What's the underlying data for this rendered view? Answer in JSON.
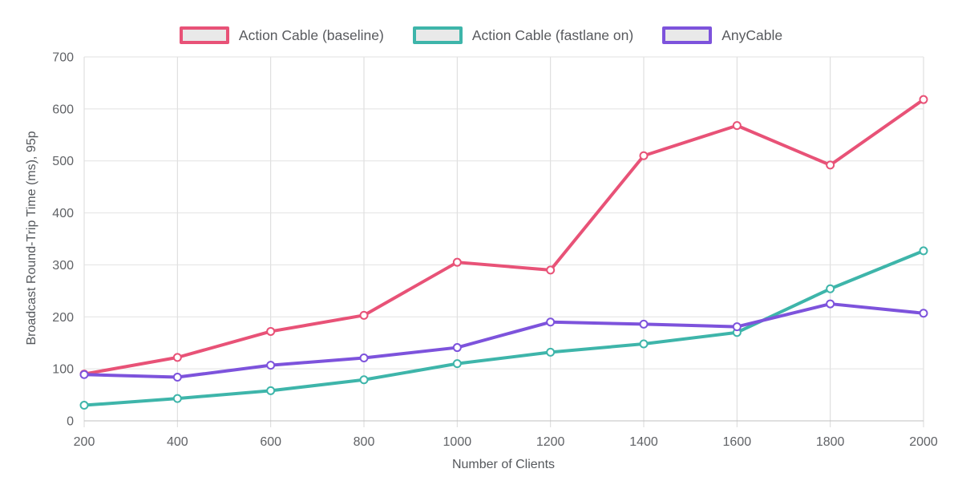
{
  "chart_data": {
    "type": "line",
    "x": [
      200,
      400,
      600,
      800,
      1000,
      1200,
      1400,
      1600,
      1800,
      2000
    ],
    "series": [
      {
        "name": "Action Cable (baseline)",
        "color": "#E85277",
        "values": [
          90,
          122,
          172,
          203,
          305,
          290,
          510,
          568,
          492,
          618
        ]
      },
      {
        "name": "Action Cable (fastlane on)",
        "color": "#3EB5AA",
        "values": [
          30,
          43,
          58,
          79,
          110,
          132,
          148,
          170,
          254,
          327
        ]
      },
      {
        "name": "AnyCable",
        "color": "#7D53DC",
        "values": [
          89,
          84,
          107,
          121,
          141,
          190,
          186,
          181,
          225,
          207
        ]
      }
    ],
    "xlabel": "Number of Clients",
    "ylabel": "Broadcast Round-Trip Time (ms), 95p",
    "ylim": [
      0,
      700
    ],
    "y_ticks": [
      0,
      100,
      200,
      300,
      400,
      500,
      600,
      700
    ],
    "x_tick_labels": [
      "200",
      "400",
      "600",
      "800",
      "1000",
      "1200",
      "1400",
      "1600",
      "1800",
      "2000"
    ],
    "grid": true,
    "legend_position": "top",
    "grid_color": "#E2E2E2",
    "zero_line_color": "#C2C2C2",
    "vertical_grid_color": "#D9D9D9",
    "legend_swatch_fill": "#E9E9E9",
    "marker_fill": "#FFFFFF"
  }
}
